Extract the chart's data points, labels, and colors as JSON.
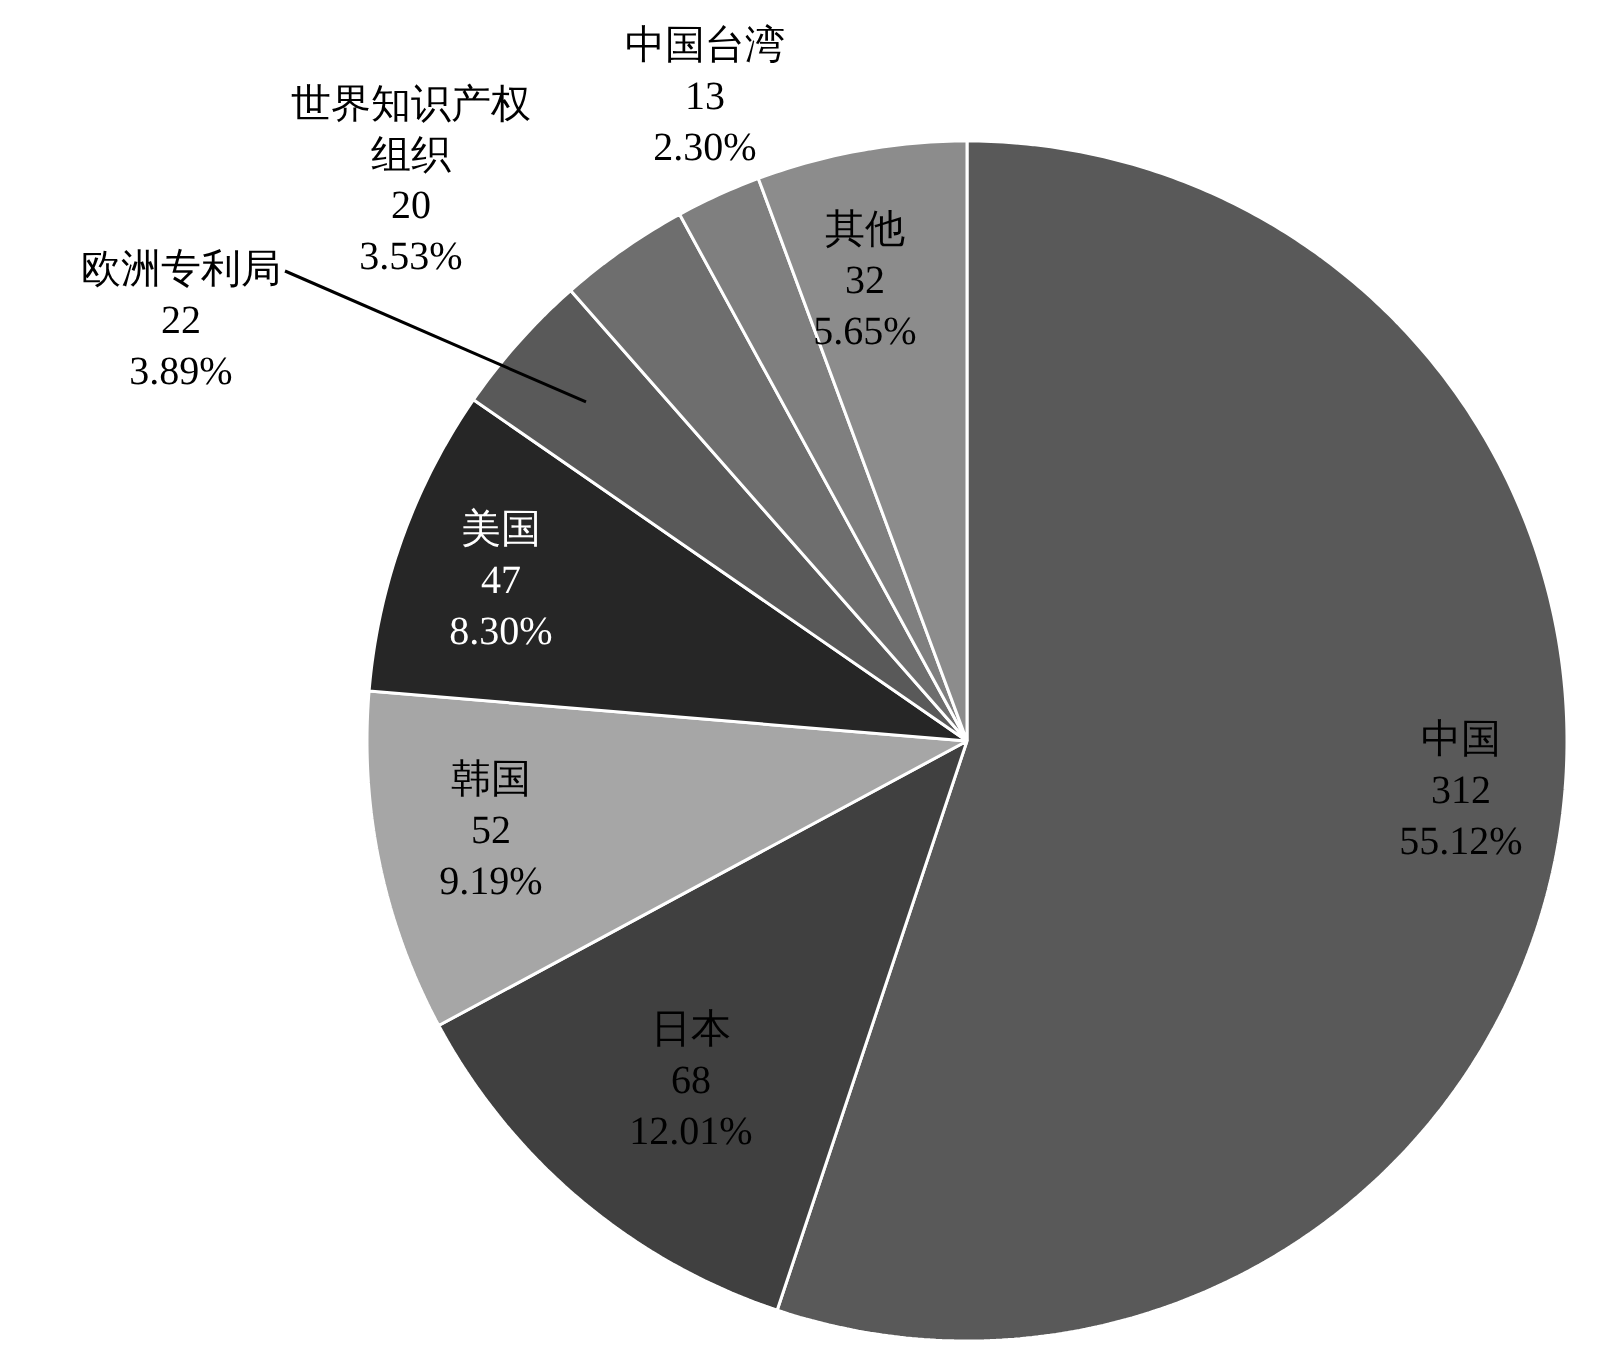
{
  "chart_data": {
    "type": "pie",
    "categories": [
      "中国",
      "日本",
      "韩国",
      "美国",
      "欧洲专利局",
      "世界知识产权组织",
      "中国台湾",
      "其他"
    ],
    "values": [
      312,
      68,
      52,
      47,
      22,
      20,
      13,
      32
    ],
    "value_labels": [
      "312\n55.12%",
      "68\n12.01%",
      "52\n9.19%",
      "47\n8.30%",
      "22\n3.89%",
      "20\n3.53%",
      "13\n2.30%",
      "32\n5.65%"
    ],
    "colors": [
      "#595959",
      "#404040",
      "#a6a6a6",
      "#262626",
      "#595959",
      "#6e6e6e",
      "#7f7f7f",
      "#8c8c8c"
    ]
  }
}
